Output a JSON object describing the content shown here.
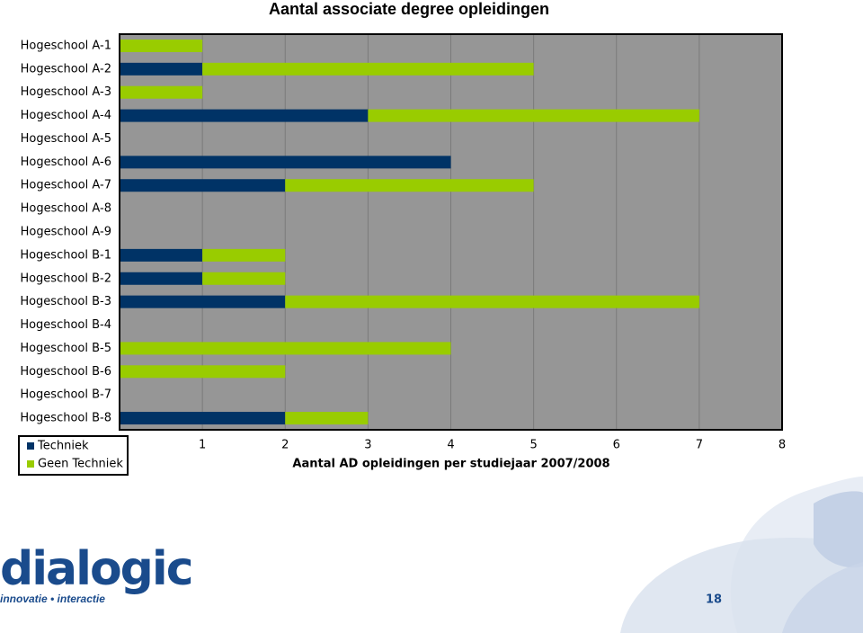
{
  "chart_data": {
    "type": "stacked-barh",
    "title": "Aantal associate degree opleidingen",
    "x_label": "Aantal AD opleidingen per studiejaar 2007/2008",
    "categories": [
      "Hogeschool A-1",
      "Hogeschool A-2",
      "Hogeschool A-3",
      "Hogeschool A-4",
      "Hogeschool A-5",
      "Hogeschool A-6",
      "Hogeschool A-7",
      "Hogeschool A-8",
      "Hogeschool A-9",
      "Hogeschool B-1",
      "Hogeschool B-2",
      "Hogeschool B-3",
      "Hogeschool B-4",
      "Hogeschool B-5",
      "Hogeschool B-6",
      "Hogeschool B-7",
      "Hogeschool B-8"
    ],
    "series": [
      {
        "name": "Techniek",
        "color": "#003366",
        "values": [
          0,
          1,
          0,
          3,
          0,
          4,
          2,
          0,
          0,
          1,
          1,
          2,
          0,
          0,
          0,
          0,
          2
        ]
      },
      {
        "name": "Geen Techniek",
        "color": "#99cc00",
        "values": [
          1,
          4,
          1,
          4,
          0,
          0,
          3,
          0,
          0,
          1,
          1,
          5,
          0,
          4,
          2,
          0,
          1
        ]
      }
    ],
    "xlim": [
      0,
      8
    ],
    "xticks": [
      1,
      2,
      3,
      4,
      5,
      6,
      7,
      8
    ],
    "grid": true,
    "legend": "bottom-left"
  },
  "logo": {
    "name": "dialogic",
    "tagline": "innovatie • interactie"
  },
  "page_number": "18"
}
